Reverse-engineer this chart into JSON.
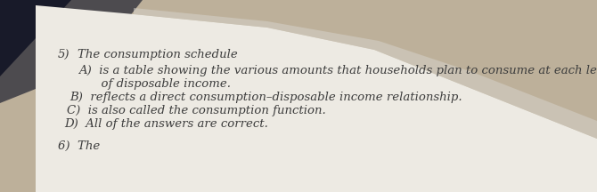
{
  "bg_color_right": "#bdb09a",
  "bg_color_topleft": "#1a1a2a",
  "page_color": "#edeae3",
  "page_shadow": "#d8d4cc",
  "question_number": "5)",
  "question_text": "The consumption schedule",
  "line_A1": "A)  is a table showing the various amounts that households plan to consume at each le",
  "line_A2": "      of disposable income.",
  "line_B": "B)  reflects a direct consumption–disposable income relationship.",
  "line_C": "C)  is also called the consumption function.",
  "line_D": "D)  All of the answers are correct.",
  "next_question": "6)  The",
  "text_color": "#3d3d3d",
  "font_size": 9.5
}
